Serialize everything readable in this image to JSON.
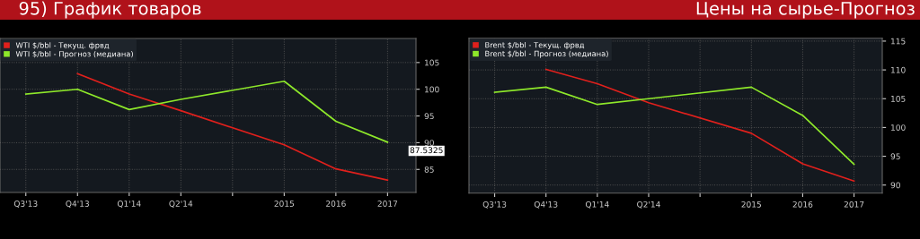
{
  "chart_data": [
    {
      "type": "line",
      "title": "95) График товаров",
      "categories": [
        "Q3'13",
        "Q4'13",
        "Q1'14",
        "Q2'14",
        null,
        "2015",
        "2016",
        "2017"
      ],
      "ylim": [
        80.7,
        109.5
      ],
      "yticks": [
        85,
        90,
        95,
        100,
        105
      ],
      "series": [
        {
          "name": "WTI $/bbl - Текущ. фрвд",
          "color": "#e0201c",
          "values": [
            null,
            102.9,
            99.1,
            96.0,
            null,
            89.6,
            85.1,
            83.0
          ]
        },
        {
          "name": "WTI $/bbl - Прогноз (медиана)",
          "color": "#8ee82a",
          "values": [
            99.1,
            100.0,
            96.2,
            98.1,
            null,
            101.5,
            94.0,
            90.1
          ]
        }
      ],
      "annotations": [
        "87.5325"
      ],
      "grid": true,
      "legend": "top left",
      "line_style": "solid",
      "marker": "none"
    },
    {
      "type": "line",
      "title": "Цены на сырье-Прогноз",
      "categories": [
        "Q3'13",
        "Q4'13",
        "Q1'14",
        "Q2'14",
        null,
        "2015",
        "2016",
        "2017"
      ],
      "ylim": [
        88.6,
        115.5
      ],
      "yticks": [
        90,
        95,
        100,
        105,
        110,
        115
      ],
      "series": [
        {
          "name": "Brent $/bbl - Текущ. фрвд",
          "color": "#e0201c",
          "values": [
            null,
            110.1,
            107.6,
            104.3,
            null,
            99.0,
            93.7,
            90.7
          ]
        },
        {
          "name": "Brent $/bbl - Прогноз (медиана)",
          "color": "#8ee82a",
          "values": [
            106.1,
            107.0,
            104.0,
            105.0,
            null,
            107.0,
            102.1,
            93.6
          ]
        }
      ],
      "grid": true,
      "legend": "top left",
      "line_style": "solid",
      "marker": "none"
    }
  ]
}
